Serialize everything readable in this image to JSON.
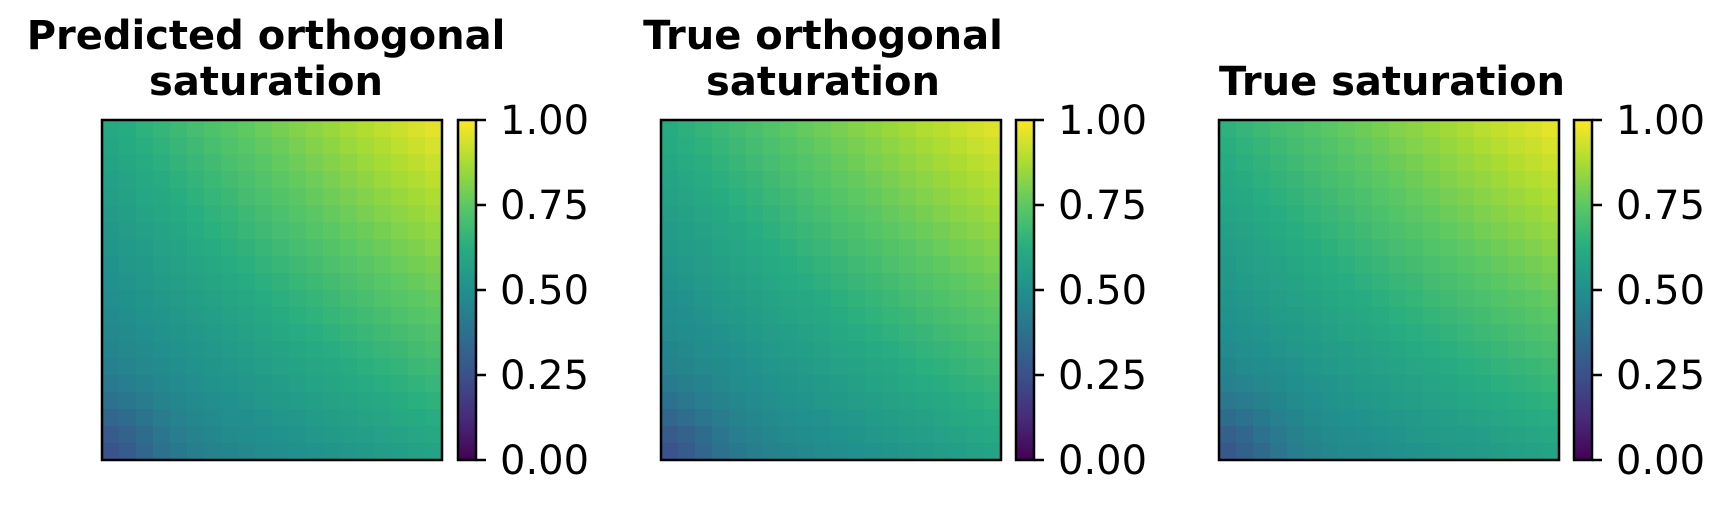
{
  "chart_data": [
    {
      "type": "heatmap",
      "title_lines": [
        "Predicted orthogonal",
        "saturation"
      ],
      "colormap": "viridis",
      "grid_size": 20,
      "vmin": 0.0,
      "vmax": 1.0,
      "colorbar_ticks": [
        "0.00",
        "0.25",
        "0.50",
        "0.75",
        "1.00"
      ],
      "colorbar_values": [
        0.0,
        0.25,
        0.5,
        0.75,
        1.0
      ],
      "corner_values": {
        "bottom_left": 0.38,
        "top_left": 0.6,
        "bottom_right": 0.58,
        "top_right": 0.98
      },
      "xticks": [],
      "yticks": []
    },
    {
      "type": "heatmap",
      "title_lines": [
        "True orthogonal",
        "saturation"
      ],
      "colormap": "viridis",
      "grid_size": 20,
      "vmin": 0.0,
      "vmax": 1.0,
      "colorbar_ticks": [
        "0.00",
        "0.25",
        "0.50",
        "0.75",
        "1.00"
      ],
      "colorbar_values": [
        0.0,
        0.25,
        0.5,
        0.75,
        1.0
      ],
      "corner_values": {
        "bottom_left": 0.38,
        "top_left": 0.62,
        "bottom_right": 0.58,
        "top_right": 0.97
      },
      "xticks": [],
      "yticks": []
    },
    {
      "type": "heatmap",
      "title_lines": [
        "True saturation"
      ],
      "colormap": "viridis",
      "grid_size": 20,
      "vmin": 0.0,
      "vmax": 1.0,
      "colorbar_ticks": [
        "0.00",
        "0.25",
        "0.50",
        "0.75",
        "1.00"
      ],
      "colorbar_values": [
        0.0,
        0.25,
        0.5,
        0.75,
        1.0
      ],
      "corner_values": {
        "bottom_left": 0.4,
        "top_left": 0.64,
        "bottom_right": 0.58,
        "top_right": 0.98
      },
      "xticks": [],
      "yticks": []
    }
  ]
}
